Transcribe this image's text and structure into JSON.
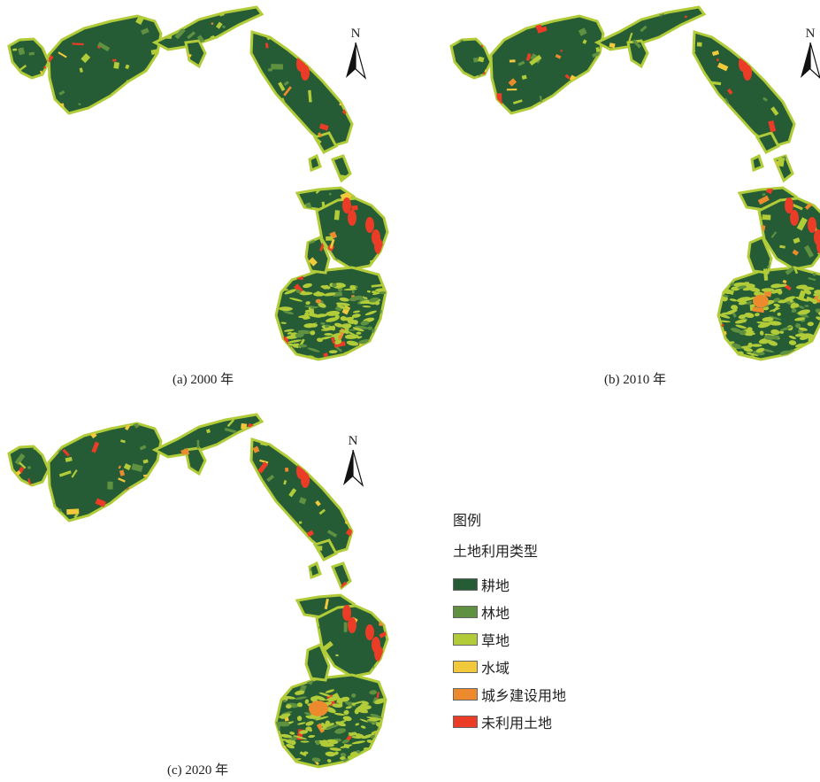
{
  "captions": {
    "panel_a": "(a) 2000 年",
    "panel_b": "(b) 2010 年",
    "panel_c": "(c) 2020 年"
  },
  "north_arrow": {
    "label": "N"
  },
  "legend": {
    "title": "图例",
    "subtitle": "土地利用类型",
    "items": [
      {
        "label": "耕地",
        "color": "#255c35"
      },
      {
        "label": "林地",
        "color": "#5f9141"
      },
      {
        "label": "草地",
        "color": "#b2cc39"
      },
      {
        "label": "水域",
        "color": "#f1c93b"
      },
      {
        "label": "城乡建设用地",
        "color": "#ee8a2e"
      },
      {
        "label": "未利用土地",
        "color": "#ea3c26"
      }
    ]
  }
}
